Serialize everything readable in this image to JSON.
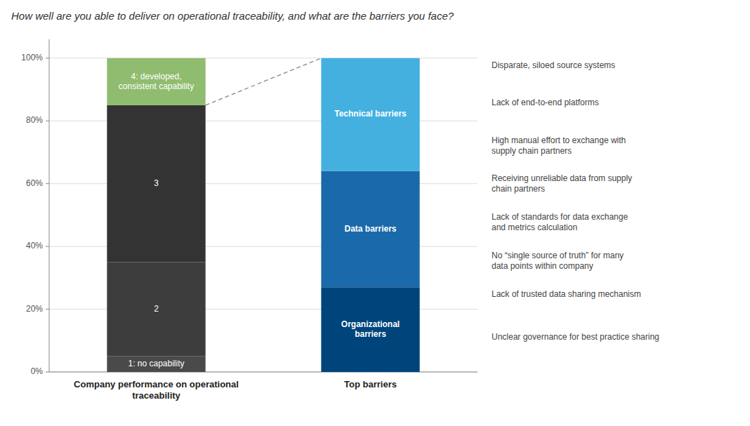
{
  "chart_data": {
    "type": "bar",
    "title": "How well are you able to deliver on operational traceability, and what are the barriers you face?",
    "stacked": true,
    "grid": true,
    "categories": [
      "Company performance on operational traceability",
      "Top barriers"
    ],
    "series": [
      {
        "name": "1: no capability",
        "color": "#4a4a4a",
        "values": [
          5,
          null
        ]
      },
      {
        "name": "2",
        "color": "#3d3d3d",
        "values": [
          30,
          null
        ]
      },
      {
        "name": "3",
        "color": "#333333",
        "values": [
          50,
          null
        ]
      },
      {
        "name": "4: developed, consistent capability",
        "color": "#8fbc6e",
        "values": [
          15,
          null
        ]
      },
      {
        "name": "Organizational barriers",
        "color": "#00447c",
        "values": [
          null,
          27
        ],
        "annotations": [
          "Lack of trusted data sharing mechanism",
          "Unclear governance for best practice sharing"
        ]
      },
      {
        "name": "Data barriers",
        "color": "#1a6aab",
        "values": [
          null,
          37
        ],
        "annotations": [
          "Receiving unreliable data from supply\nchain partners",
          "Lack of standards for data exchange\nand metrics calculation",
          "No “single source of truth” for many\ndata points within company"
        ]
      },
      {
        "name": "Technical barriers",
        "color": "#43b0e0",
        "values": [
          null,
          36
        ],
        "annotations": [
          "Disparate, siloed source systems",
          "Lack of end-to-end platforms",
          "High manual effort to exchange with\nsupply chain partners"
        ]
      }
    ],
    "ylim": [
      0,
      106
    ],
    "yticks": [
      {
        "value": 0,
        "label": "0%"
      },
      {
        "value": 20,
        "label": "20%"
      },
      {
        "value": 40,
        "label": "40%"
      },
      {
        "value": 60,
        "label": "60%"
      },
      {
        "value": 80,
        "label": "80%"
      },
      {
        "value": 100,
        "label": "100%"
      }
    ]
  }
}
